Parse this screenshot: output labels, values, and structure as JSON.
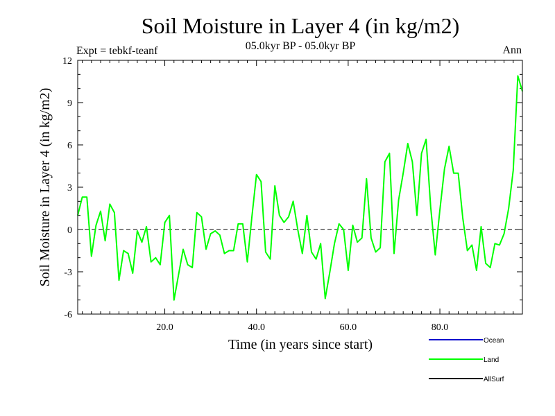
{
  "chart_data": {
    "type": "line",
    "title": "Soil Moisture in Layer 4 (in kg/m2)",
    "subtitle": "05.0kyr BP - 05.0kyr BP",
    "expt_label": "Expt = tebkf-teanf",
    "period_label": "Ann",
    "xlabel": "Time (in years since start)",
    "ylabel": "Soil Moisture in Layer 4 (in kg/m2)",
    "xlim": [
      1,
      98
    ],
    "ylim": [
      -6,
      12
    ],
    "x_ticks": [
      20,
      40,
      60,
      80
    ],
    "x_tick_labels": [
      "20.0",
      "40.0",
      "60.0",
      "80.0"
    ],
    "y_ticks": [
      -6,
      -3,
      0,
      3,
      6,
      9,
      12
    ],
    "y_tick_labels": [
      "-6",
      "-3",
      "0",
      "3",
      "6",
      "9",
      "12"
    ],
    "reference_line": 0,
    "series": [
      {
        "name": "Ocean",
        "color": "#0000cc",
        "x": [],
        "values": []
      },
      {
        "name": "Land",
        "color": "#00ff00",
        "x": [
          1,
          2,
          3,
          4,
          5,
          6,
          7,
          8,
          9,
          10,
          11,
          12,
          13,
          14,
          15,
          16,
          17,
          18,
          19,
          20,
          21,
          22,
          23,
          24,
          25,
          26,
          27,
          28,
          29,
          30,
          31,
          32,
          33,
          34,
          35,
          36,
          37,
          38,
          39,
          40,
          41,
          42,
          43,
          44,
          45,
          46,
          47,
          48,
          49,
          50,
          51,
          52,
          53,
          54,
          55,
          56,
          57,
          58,
          59,
          60,
          61,
          62,
          63,
          64,
          65,
          66,
          67,
          68,
          69,
          70,
          71,
          72,
          73,
          74,
          75,
          76,
          77,
          78,
          79,
          80,
          81,
          82,
          83,
          84,
          85,
          86,
          87,
          88,
          89,
          90,
          91,
          92,
          93,
          94,
          95,
          96,
          97,
          98
        ],
        "values": [
          1.0,
          2.3,
          2.3,
          -1.9,
          0.3,
          1.3,
          -0.8,
          1.8,
          1.2,
          -3.6,
          -1.5,
          -1.7,
          -3.1,
          -0.1,
          -0.9,
          0.2,
          -2.3,
          -2.0,
          -2.5,
          0.5,
          1.0,
          -5.0,
          -3.2,
          -1.4,
          -2.5,
          -2.7,
          1.2,
          0.9,
          -1.4,
          -0.3,
          -0.1,
          -0.4,
          -1.7,
          -1.5,
          -1.5,
          0.4,
          0.4,
          -2.3,
          0.9,
          3.9,
          3.4,
          -1.6,
          -2.1,
          3.1,
          1.0,
          0.5,
          0.9,
          2.0,
          0.0,
          -1.7,
          1.0,
          -1.6,
          -2.1,
          -1.0,
          -4.9,
          -3.0,
          -1.0,
          0.4,
          0.0,
          -2.9,
          0.3,
          -0.9,
          -0.6,
          3.6,
          -0.6,
          -1.6,
          -1.3,
          4.8,
          5.4,
          -1.7,
          2.1,
          4.0,
          6.1,
          4.8,
          1.0,
          5.4,
          6.4,
          1.6,
          -1.8,
          1.4,
          4.3,
          5.9,
          4.0,
          4.0,
          0.8,
          -1.5,
          -1.1,
          -2.9,
          0.2,
          -2.4,
          -2.7,
          -1.0,
          -1.1,
          -0.3,
          1.5,
          4.2,
          10.9,
          9.8
        ]
      },
      {
        "name": "AllSurf",
        "color": "#000000",
        "x": [],
        "values": []
      }
    ]
  }
}
